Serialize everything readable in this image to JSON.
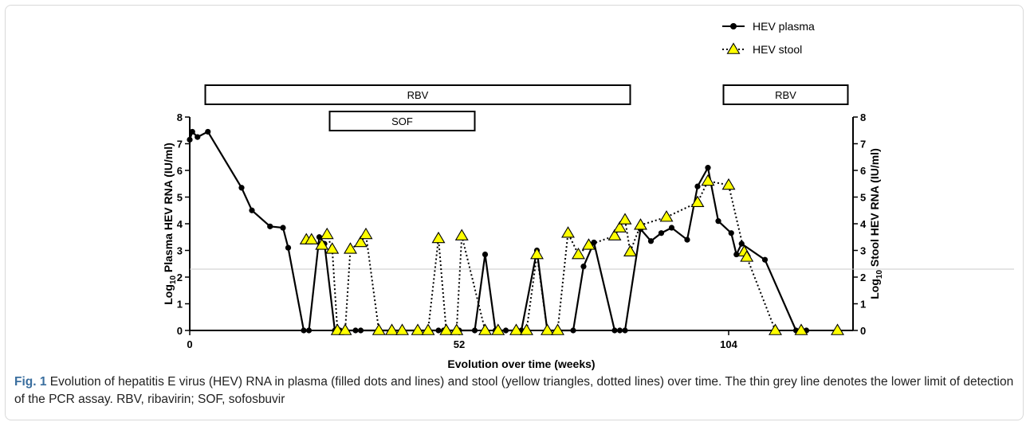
{
  "chart_data": {
    "type": "line",
    "xlabel": "Evolution over time (weeks)",
    "ylabel_left": "Log10 Plasma HEV RNA (IU/ml)",
    "ylabel_right": "Log10 Stool HEV RNA (IU/ml)",
    "xlim": [
      0,
      128
    ],
    "ylim": [
      0,
      8
    ],
    "x_ticks": [
      0,
      52,
      104
    ],
    "y_ticks": [
      0,
      1,
      2,
      3,
      4,
      5,
      6,
      7,
      8
    ],
    "detection_limit": 2.3,
    "legend_position": "top-right",
    "treatment_bars": [
      {
        "label": "RBV",
        "start": 3,
        "end": 85
      },
      {
        "label": "SOF",
        "start": 27,
        "end": 55
      },
      {
        "label": "RBV",
        "start": 103,
        "end": 127
      }
    ],
    "series": [
      {
        "name": "HEV plasma",
        "style": "solid-line-filled-dots",
        "color": "#000000",
        "points": [
          [
            0,
            7.15
          ],
          [
            0.5,
            7.45
          ],
          [
            1.5,
            7.25
          ],
          [
            3.5,
            7.45
          ],
          [
            10,
            5.35
          ],
          [
            12,
            4.5
          ],
          [
            15.5,
            3.9
          ],
          [
            18,
            3.85
          ],
          [
            19,
            3.1
          ],
          [
            22,
            0
          ],
          [
            23,
            0
          ],
          [
            25,
            3.5
          ],
          [
            26,
            3.25
          ],
          [
            28,
            0
          ],
          [
            29,
            0
          ],
          [
            30,
            0
          ],
          [
            32,
            0
          ],
          [
            33,
            0
          ],
          [
            48,
            0
          ],
          [
            49,
            0
          ],
          [
            52,
            0
          ],
          [
            55,
            0
          ],
          [
            57,
            2.85
          ],
          [
            59,
            0
          ],
          [
            61,
            0
          ],
          [
            64,
            0
          ],
          [
            67,
            3.0
          ],
          [
            69,
            0
          ],
          [
            71,
            0
          ],
          [
            74,
            0
          ],
          [
            76,
            2.4
          ],
          [
            78,
            3.3
          ],
          [
            82,
            0
          ],
          [
            83,
            0
          ],
          [
            84,
            0
          ],
          [
            87,
            3.8
          ],
          [
            89,
            3.35
          ],
          [
            91,
            3.65
          ],
          [
            93,
            3.85
          ],
          [
            96,
            3.4
          ],
          [
            98,
            5.4
          ],
          [
            100,
            6.1
          ],
          [
            102,
            4.1
          ],
          [
            104.5,
            3.65
          ],
          [
            105.5,
            2.85
          ],
          [
            106.5,
            3.25
          ],
          [
            111,
            2.65
          ],
          [
            117,
            0
          ],
          [
            119,
            0
          ]
        ]
      },
      {
        "name": "HEV stool",
        "style": "dotted-line-yellow-triangles",
        "color": "#ffff00",
        "points": [
          [
            22.5,
            3.4
          ],
          [
            23.5,
            3.4
          ],
          [
            25.5,
            3.2
          ],
          [
            26.5,
            3.6
          ],
          [
            27.5,
            3.05
          ],
          [
            28.5,
            0
          ],
          [
            30,
            0
          ],
          [
            31,
            3.05
          ],
          [
            33,
            3.3
          ],
          [
            34,
            3.6
          ],
          [
            36.5,
            0
          ],
          [
            39,
            0
          ],
          [
            41,
            0
          ],
          [
            44,
            0
          ],
          [
            46,
            0
          ],
          [
            48,
            3.45
          ],
          [
            49.5,
            0
          ],
          [
            51.5,
            0
          ],
          [
            52.5,
            3.55
          ],
          [
            57,
            0
          ],
          [
            59.5,
            0
          ],
          [
            63,
            0
          ],
          [
            65,
            0
          ],
          [
            67,
            2.85
          ],
          [
            69,
            0
          ],
          [
            71,
            0
          ],
          [
            73,
            3.65
          ],
          [
            75,
            2.85
          ],
          [
            77,
            3.2
          ],
          [
            82,
            3.55
          ],
          [
            83,
            3.85
          ],
          [
            84,
            4.15
          ],
          [
            85,
            2.95
          ],
          [
            87,
            3.95
          ],
          [
            92,
            4.25
          ],
          [
            98,
            4.8
          ],
          [
            100,
            5.6
          ],
          [
            104,
            5.45
          ],
          [
            107,
            2.95
          ],
          [
            107.5,
            2.75
          ],
          [
            113,
            0
          ],
          [
            118,
            0
          ],
          [
            125,
            0
          ]
        ]
      }
    ]
  },
  "caption": {
    "label": "Fig. 1",
    "text": "Evolution of hepatitis E virus (HEV) RNA in plasma (filled dots and lines) and stool (yellow triangles, dotted lines) over time. The thin grey line denotes the lower limit of detection of the PCR assay. RBV, ribavirin; SOF, sofosbuvir"
  }
}
